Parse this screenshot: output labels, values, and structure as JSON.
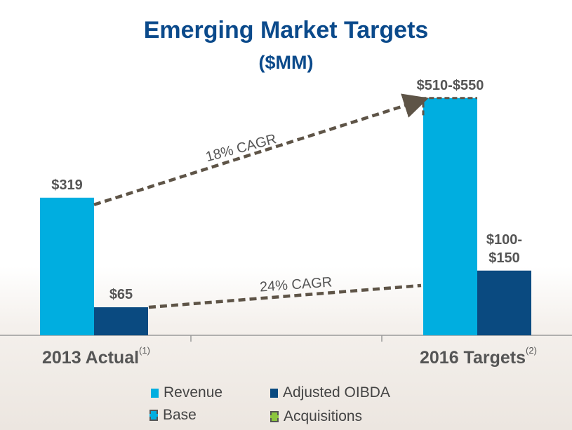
{
  "title": "Emerging Market Targets",
  "subtitle": "($MM)",
  "categories": [
    {
      "label": "2013 Actual",
      "note": "(1)"
    },
    {
      "label": "2016 Targets",
      "note": "(2)"
    }
  ],
  "legend": [
    {
      "label": "Revenue",
      "icon": "revenue-swatch"
    },
    {
      "label": "Adjusted OIBDA",
      "icon": "oibda-swatch"
    },
    {
      "label": "Base",
      "icon": "base-swatch"
    },
    {
      "label": "Acquisitions",
      "icon": "acquisitions-swatch"
    }
  ],
  "colors": {
    "revenue": "#00aee0",
    "oibda": "#0a4a80",
    "arrow": "#5e5447",
    "label": "#555555",
    "title": "#0b4a8b"
  },
  "chart_data": {
    "type": "bar",
    "title": "Emerging Market Targets",
    "subtitle": "($MM)",
    "categories": [
      "2013 Actual",
      "2016 Targets"
    ],
    "series": [
      {
        "name": "Revenue",
        "values": [
          319,
          530
        ],
        "range": [
          null,
          [
            510,
            550
          ]
        ],
        "labels": [
          "$319",
          "$510-$550"
        ]
      },
      {
        "name": "Adjusted OIBDA",
        "values": [
          65,
          125
        ],
        "range": [
          null,
          [
            100,
            150
          ]
        ],
        "labels": [
          "$65",
          "$100-\n$150"
        ]
      }
    ],
    "annotations": [
      {
        "text": "18% CAGR",
        "from": "2013 Actual Revenue",
        "to": "2016 Targets Revenue"
      },
      {
        "text": "24% CAGR",
        "from": "2013 Actual Adjusted OIBDA",
        "to": "2016 Targets Adjusted OIBDA"
      }
    ],
    "ylim": [
      0,
      560
    ]
  }
}
